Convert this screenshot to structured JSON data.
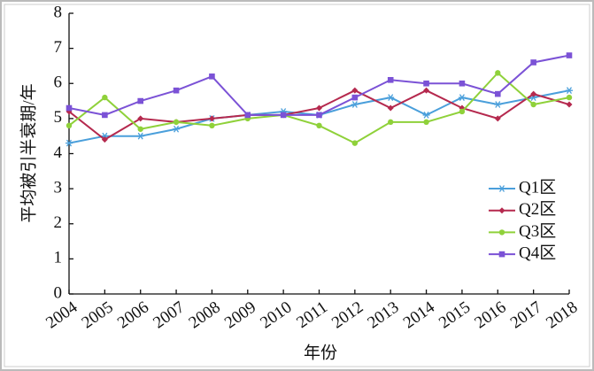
{
  "chart_data": {
    "type": "line",
    "x_label": "年份",
    "y_label": "平均被引半衰期/年",
    "categories": [
      "2004",
      "2005",
      "2006",
      "2007",
      "2008",
      "2009",
      "2010",
      "2011",
      "2012",
      "2013",
      "2014",
      "2015",
      "2016",
      "2017",
      "2018"
    ],
    "ylim": [
      0,
      8
    ],
    "yticks": [
      0,
      1,
      2,
      3,
      4,
      5,
      6,
      7,
      8
    ],
    "legend": "right",
    "series": [
      {
        "name": "Q1区",
        "color": "#4a9fdb",
        "marker": "star",
        "values": [
          4.3,
          4.5,
          4.5,
          4.7,
          5.0,
          5.1,
          5.2,
          5.1,
          5.4,
          5.6,
          5.1,
          5.6,
          5.4,
          5.6,
          5.8
        ]
      },
      {
        "name": "Q2区",
        "color": "#b5294e",
        "marker": "diamond",
        "values": [
          5.2,
          4.4,
          5.0,
          4.9,
          5.0,
          5.1,
          5.1,
          5.3,
          5.8,
          5.3,
          5.8,
          5.3,
          5.0,
          5.7,
          5.4
        ]
      },
      {
        "name": "Q3区",
        "color": "#8fd13a",
        "marker": "circle",
        "values": [
          4.8,
          5.6,
          4.7,
          4.9,
          4.8,
          5.0,
          5.1,
          4.8,
          4.3,
          4.9,
          4.9,
          5.2,
          6.3,
          5.4,
          5.6
        ]
      },
      {
        "name": "Q4区",
        "color": "#7b52d6",
        "marker": "square",
        "values": [
          5.3,
          5.1,
          5.5,
          5.8,
          6.2,
          5.1,
          5.1,
          5.1,
          5.6,
          6.1,
          6.0,
          6.0,
          5.7,
          6.6,
          6.8
        ]
      }
    ]
  }
}
